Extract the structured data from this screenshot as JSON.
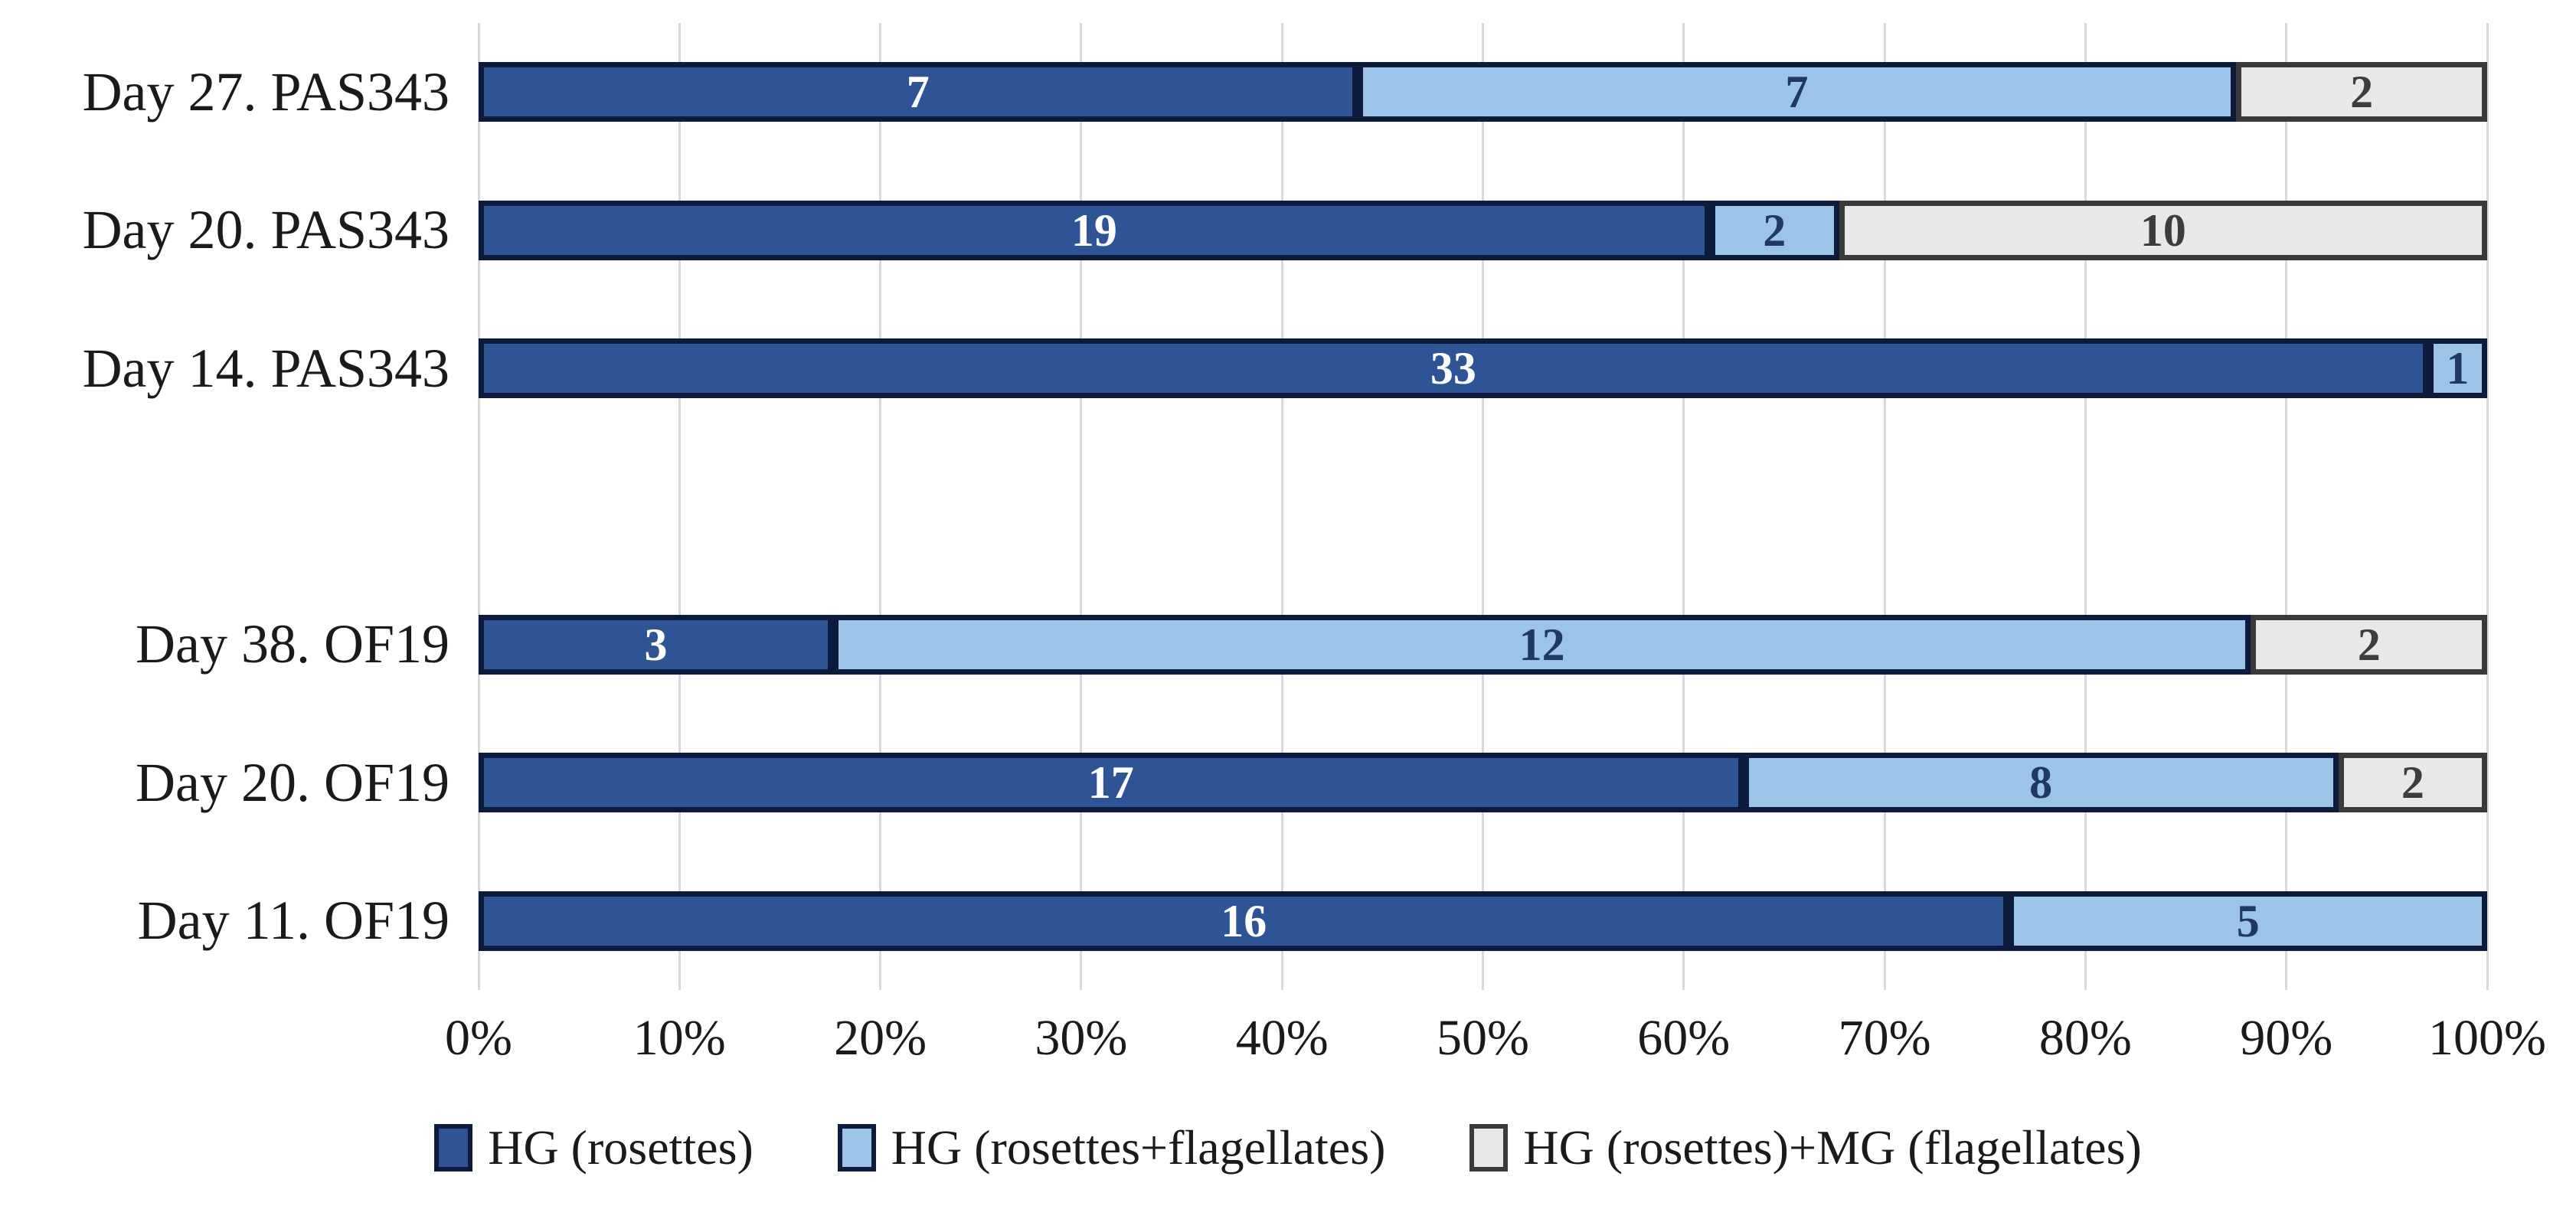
{
  "chart_data": {
    "type": "bar",
    "orientation": "horizontal",
    "stacked": "100%",
    "title": "",
    "xlabel": "",
    "ylabel": "",
    "categories": [
      "Day 27. PAS343",
      "Day 20. PAS343",
      "Day 14. PAS343",
      "",
      "Day 38. OF19",
      "Day 20. OF19",
      "Day 11. OF19"
    ],
    "series": [
      {
        "name": "HG (rosettes)",
        "color": "#2F5496",
        "border_color": "#0C1A3C",
        "label_color": "#FFFFFF",
        "values": [
          7,
          19,
          33,
          null,
          3,
          17,
          16
        ]
      },
      {
        "name": "HG (rosettes+flagellates)",
        "color": "#9CC3E8",
        "border_color": "#0C1A3C",
        "label_color": "#1F3864",
        "values": [
          7,
          2,
          1,
          null,
          12,
          8,
          5
        ]
      },
      {
        "name": "HG (rosettes)+MG (flagellates)",
        "color": "#E8E8E8",
        "border_color": "#3A3A3A",
        "label_color": "#3D3D3D",
        "values": [
          2,
          10,
          0,
          null,
          2,
          2,
          0
        ]
      }
    ],
    "x_axis": {
      "ticks": [
        "0%",
        "10%",
        "20%",
        "30%",
        "40%",
        "50%",
        "60%",
        "70%",
        "80%",
        "90%",
        "100%"
      ],
      "min": 0,
      "max": 100
    },
    "grid": {
      "vertical": true,
      "color": "#D9D9D9"
    },
    "legend_position": "bottom"
  }
}
